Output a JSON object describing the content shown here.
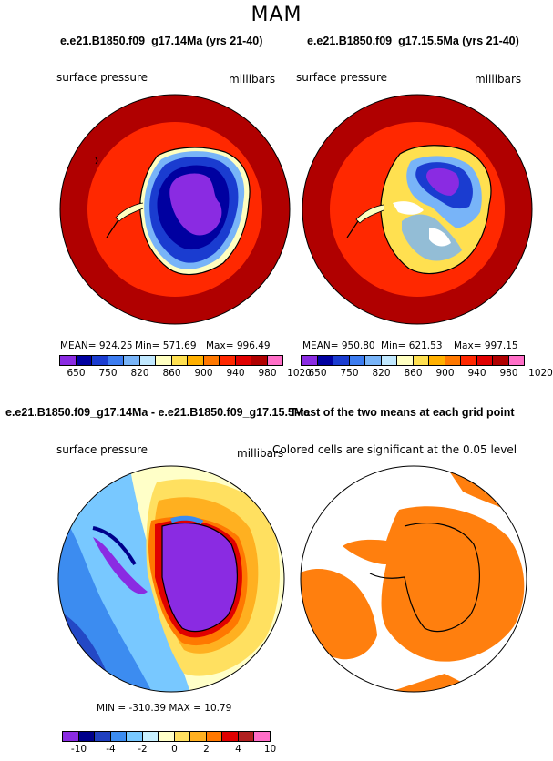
{
  "figure": {
    "title": "MAM"
  },
  "panels": [
    {
      "title": "e.e21.B1850.f09_g17.14Ma (yrs 21-40)",
      "variable_label": "surface pressure",
      "units_label": "millibars",
      "stats": {
        "mean": "MEAN= 924.25",
        "min": "Min= 571.69",
        "max": "Max= 996.49"
      },
      "colorbar": [
        "650",
        "750",
        "820",
        "860",
        "900",
        "940",
        "980",
        "1020"
      ]
    },
    {
      "title": "e.e21.B1850.f09_g17.15.5Ma (yrs 21-40)",
      "variable_label": "surface pressure",
      "units_label": "millibars",
      "stats": {
        "mean": "MEAN= 950.80",
        "min": "Min= 621.53",
        "max": "Max= 997.15"
      },
      "colorbar": [
        "650",
        "750",
        "820",
        "860",
        "900",
        "940",
        "980",
        "1020"
      ]
    },
    {
      "title": "e.e21.B1850.f09_g17.14Ma - e.e21.B1850.f09_g17.15.5Ma",
      "variable_label": "surface pressure",
      "units_label": "millibars",
      "stats": {
        "text": "MIN = -310.39  MAX =   10.79"
      },
      "colorbar": [
        "-10",
        "-4",
        "-2",
        "0",
        "2",
        "4",
        "10"
      ]
    },
    {
      "title": "T-test of the two means at each grid point",
      "subtitle": "Colored cells are significant at the 0.05 level"
    }
  ],
  "colors": {
    "abs_scale": [
      "#8a2be2",
      "#0000a0",
      "#1a3cd0",
      "#3c7cf0",
      "#78b4f8",
      "#c0e8ff",
      "#ffffc0",
      "#ffe050",
      "#ffb000",
      "#ff7800",
      "#ff2800",
      "#e00000",
      "#b00000",
      "#ff6ec7"
    ],
    "diff_scale": [
      "#8a2be2",
      "#00008b",
      "#2040c0",
      "#3c8cf0",
      "#78c8ff",
      "#c8f0ff",
      "#ffffc8",
      "#ffe060",
      "#ffb020",
      "#ff7800",
      "#e00000",
      "#b02020",
      "#ff6ec7"
    ],
    "significant": "#ff7f0e",
    "coast": "#000000"
  }
}
